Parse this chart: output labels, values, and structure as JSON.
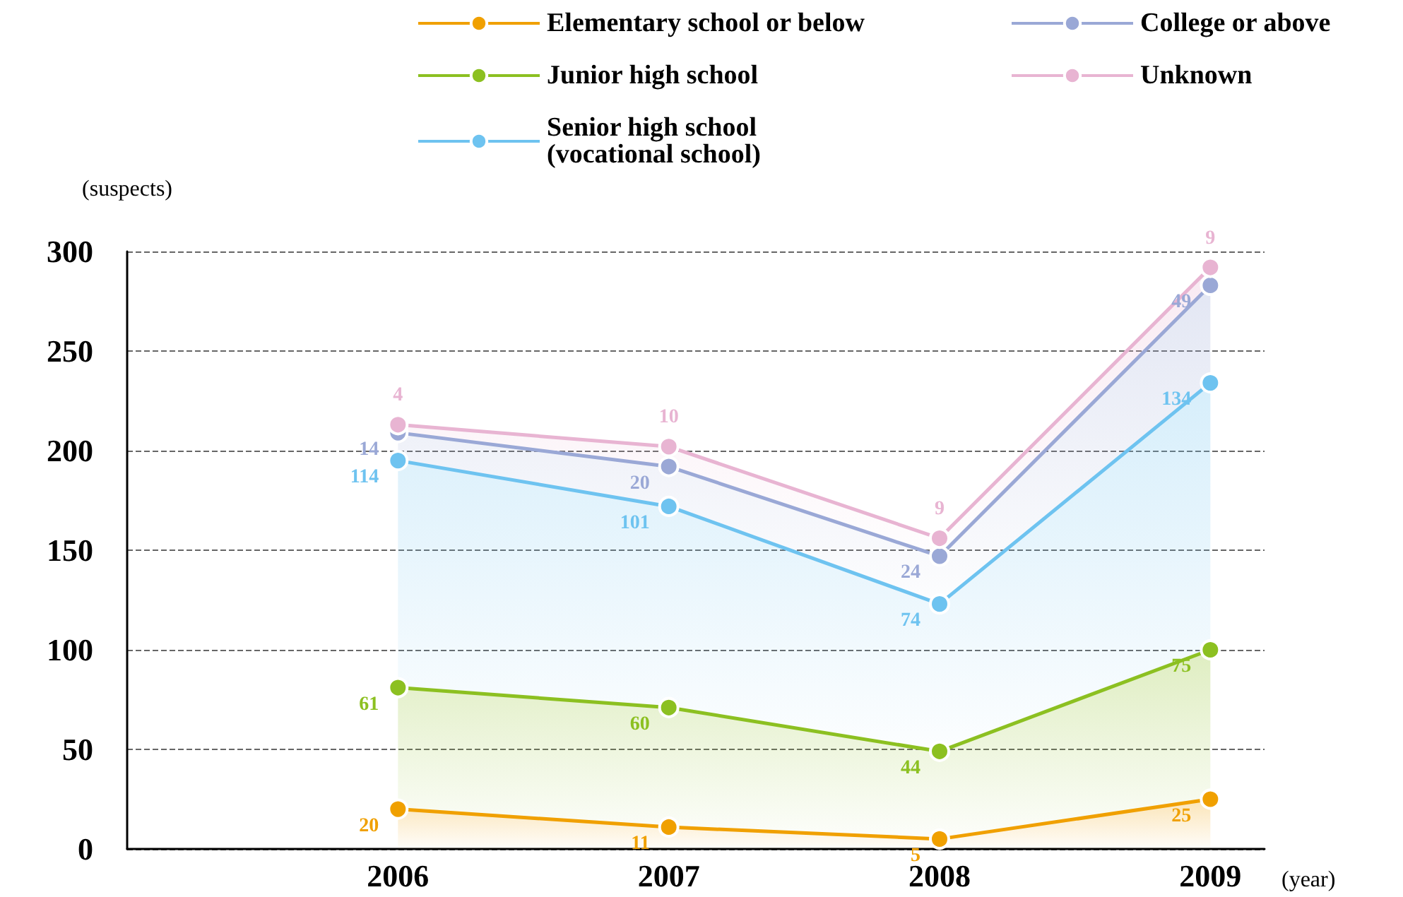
{
  "chart_data": {
    "type": "area",
    "stacked": true,
    "xlabel": "(year)",
    "ylabel": "(suspects)",
    "x": [
      2006,
      2007,
      2008,
      2009
    ],
    "xlim": [
      2005,
      2009.2
    ],
    "xticks": [
      2006,
      2007,
      2008,
      2009
    ],
    "ylim": [
      0,
      300
    ],
    "yticks": [
      0,
      50,
      100,
      150,
      200,
      250,
      300
    ],
    "grid": "y",
    "legend": "top",
    "marker": "circle",
    "data_labels": true,
    "series": [
      {
        "name": "Elementary school or below",
        "color": "#f0a000",
        "values": [
          20,
          11,
          5,
          25
        ]
      },
      {
        "name": "Junior high school",
        "color": "#8cc021",
        "values": [
          61,
          60,
          44,
          75
        ]
      },
      {
        "name": "Senior high school\n(vocational school)",
        "color": "#6ec3f0",
        "values": [
          114,
          101,
          74,
          134
        ]
      },
      {
        "name": "College or above",
        "color": "#9aa8d6",
        "values": [
          14,
          20,
          24,
          49
        ]
      },
      {
        "name": "Unknown",
        "color": "#e8b4d2",
        "values": [
          4,
          10,
          9,
          9
        ]
      }
    ]
  }
}
